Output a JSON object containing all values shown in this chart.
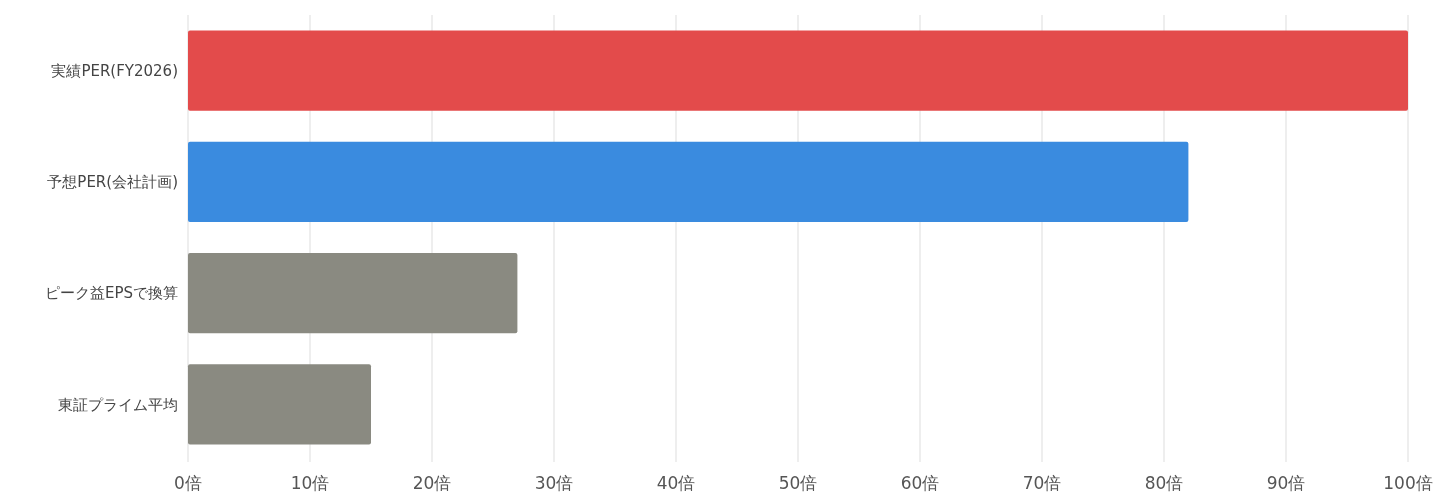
{
  "chart_data": {
    "type": "bar",
    "orientation": "horizontal",
    "categories": [
      "実績PER(FY2026)",
      "予想PER(会社計画)",
      "ピーク益EPSで換算",
      "東証プライム平均"
    ],
    "values": [
      100,
      82,
      27,
      15
    ],
    "colors": [
      "#e34b4b",
      "#3a8bdf",
      "#8a8a81",
      "#8a8a81"
    ],
    "xlim": [
      0,
      100
    ],
    "xticks": [
      {
        "value": 0,
        "label": "0倍"
      },
      {
        "value": 10,
        "label": "10倍"
      },
      {
        "value": 20,
        "label": "20倍"
      },
      {
        "value": 30,
        "label": "30倍"
      },
      {
        "value": 40,
        "label": "40倍"
      },
      {
        "value": 50,
        "label": "50倍"
      },
      {
        "value": 60,
        "label": "60倍"
      },
      {
        "value": 70,
        "label": "70倍"
      },
      {
        "value": 80,
        "label": "80倍"
      },
      {
        "value": 90,
        "label": "90倍"
      },
      {
        "value": 100,
        "label": "100倍"
      }
    ],
    "grid": "x"
  }
}
